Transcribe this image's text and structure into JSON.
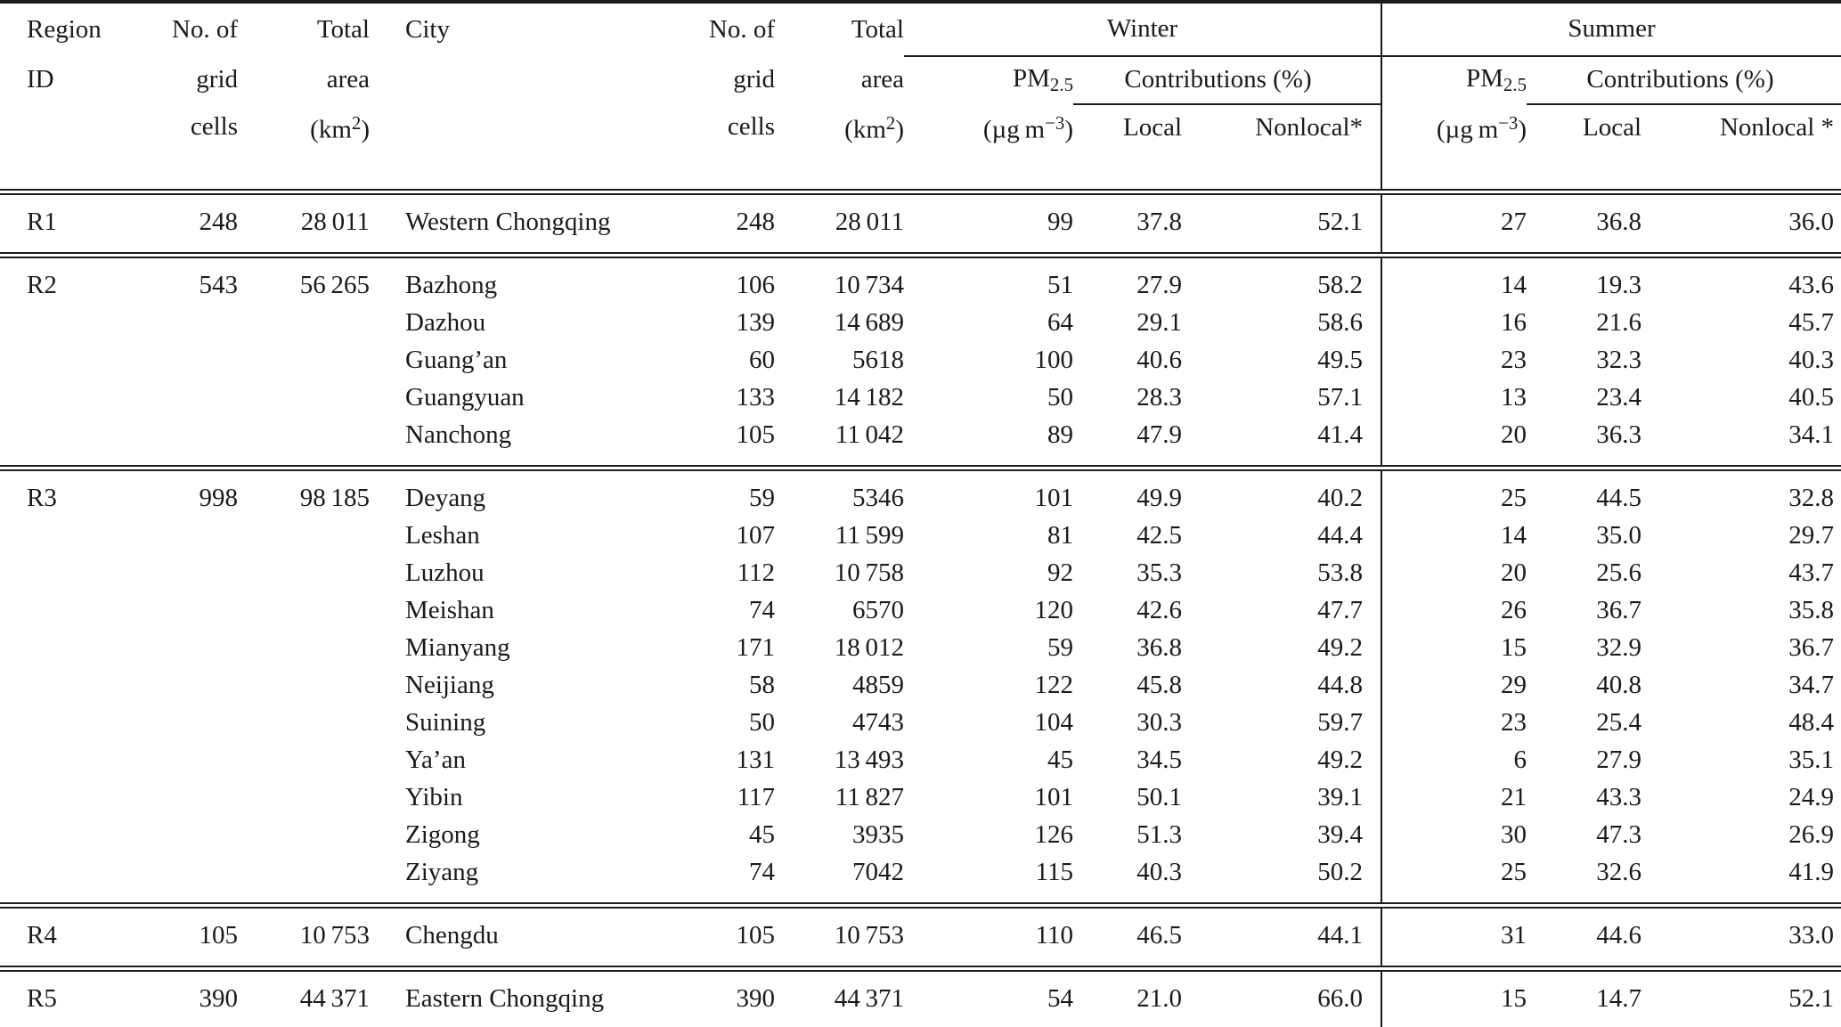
{
  "colors": {
    "text": "#1a1a1a",
    "background": "#ffffff",
    "rule": "#1b1b1b"
  },
  "table": {
    "header": {
      "region_line1": "Region",
      "region_line2": "ID",
      "grid_line1": "No. of",
      "grid_line2": "grid",
      "grid_line3": "cells",
      "area_line1": "Total",
      "area_line2": "area",
      "area_unit_pre": "(km",
      "area_unit_sup": "2",
      "area_unit_post": ")",
      "city": "City",
      "winter": "Winter",
      "summer": "Summer",
      "pm_main": "PM",
      "pm_sub": "2.5",
      "pm_unit_pre": "(µg m",
      "pm_unit_sup": "−3",
      "pm_unit_post": ")",
      "contributions": "Contributions (%)",
      "local": "Local",
      "nonlocal_winter": "Nonlocal*",
      "nonlocal_summer": "Nonlocal *"
    },
    "groups": [
      {
        "id": "R1",
        "cells": "248",
        "area": "28 011",
        "rows": [
          [
            "Western Chongqing",
            "248",
            "28 011",
            "99",
            "37.8",
            "52.1",
            "27",
            "36.8",
            "36.0"
          ]
        ]
      },
      {
        "id": "R2",
        "cells": "543",
        "area": "56 265",
        "rows": [
          [
            "Bazhong",
            "106",
            "10 734",
            "51",
            "27.9",
            "58.2",
            "14",
            "19.3",
            "43.6"
          ],
          [
            "Dazhou",
            "139",
            "14 689",
            "64",
            "29.1",
            "58.6",
            "16",
            "21.6",
            "45.7"
          ],
          [
            "Guang’an",
            "60",
            "5618",
            "100",
            "40.6",
            "49.5",
            "23",
            "32.3",
            "40.3"
          ],
          [
            "Guangyuan",
            "133",
            "14 182",
            "50",
            "28.3",
            "57.1",
            "13",
            "23.4",
            "40.5"
          ],
          [
            "Nanchong",
            "105",
            "11 042",
            "89",
            "47.9",
            "41.4",
            "20",
            "36.3",
            "34.1"
          ]
        ]
      },
      {
        "id": "R3",
        "cells": "998",
        "area": "98 185",
        "rows": [
          [
            "Deyang",
            "59",
            "5346",
            "101",
            "49.9",
            "40.2",
            "25",
            "44.5",
            "32.8"
          ],
          [
            "Leshan",
            "107",
            "11 599",
            "81",
            "42.5",
            "44.4",
            "14",
            "35.0",
            "29.7"
          ],
          [
            "Luzhou",
            "112",
            "10 758",
            "92",
            "35.3",
            "53.8",
            "20",
            "25.6",
            "43.7"
          ],
          [
            "Meishan",
            "74",
            "6570",
            "120",
            "42.6",
            "47.7",
            "26",
            "36.7",
            "35.8"
          ],
          [
            "Mianyang",
            "171",
            "18 012",
            "59",
            "36.8",
            "49.2",
            "15",
            "32.9",
            "36.7"
          ],
          [
            "Neijiang",
            "58",
            "4859",
            "122",
            "45.8",
            "44.8",
            "29",
            "40.8",
            "34.7"
          ],
          [
            "Suining",
            "50",
            "4743",
            "104",
            "30.3",
            "59.7",
            "23",
            "25.4",
            "48.4"
          ],
          [
            "Ya’an",
            "131",
            "13 493",
            "45",
            "34.5",
            "49.2",
            "6",
            "27.9",
            "35.1"
          ],
          [
            "Yibin",
            "117",
            "11 827",
            "101",
            "50.1",
            "39.1",
            "21",
            "43.3",
            "24.9"
          ],
          [
            "Zigong",
            "45",
            "3935",
            "126",
            "51.3",
            "39.4",
            "30",
            "47.3",
            "26.9"
          ],
          [
            "Ziyang",
            "74",
            "7042",
            "115",
            "40.3",
            "50.2",
            "25",
            "32.6",
            "41.9"
          ]
        ]
      },
      {
        "id": "R4",
        "cells": "105",
        "area": "10 753",
        "rows": [
          [
            "Chengdu",
            "105",
            "10 753",
            "110",
            "46.5",
            "44.1",
            "31",
            "44.6",
            "33.0"
          ]
        ]
      },
      {
        "id": "R5",
        "cells": "390",
        "area": "44 371",
        "rows": [
          [
            "Eastern Chongqing",
            "390",
            "44 371",
            "54",
            "21.0",
            "66.0",
            "15",
            "14.7",
            "52.1"
          ]
        ]
      }
    ]
  }
}
